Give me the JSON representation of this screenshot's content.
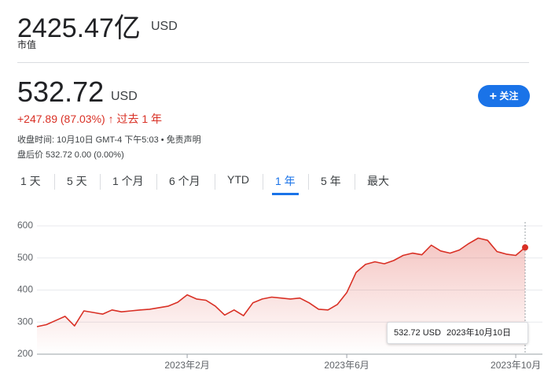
{
  "header": {
    "market_cap": "2425.47亿",
    "market_cap_currency": "USD",
    "market_cap_label": "市值"
  },
  "quote": {
    "price": "532.72",
    "currency": "USD",
    "change": "+247.89 (87.03%)",
    "period": "过去 1 年",
    "close_time": "收盘时间: 10月10日 GMT-4 下午5:03",
    "disclaimer": "免责声明",
    "after_hours": "盘后价 532.72 0.00 (0.00%)",
    "follow_button": "关注"
  },
  "tabs": [
    "1 天",
    "5 天",
    "1 个月",
    "6 个月",
    "YTD",
    "1 年",
    "5 年",
    "最大"
  ],
  "active_tab": "1 年",
  "tooltip": {
    "price": "532.72 USD",
    "date": "2023年10月10日"
  },
  "chart_data": {
    "type": "line",
    "color": "#d93025",
    "grid": true,
    "ylim": [
      200,
      600
    ],
    "yticks": [
      200,
      300,
      400,
      500,
      600
    ],
    "categories": [
      null,
      null,
      null,
      null,
      null,
      null,
      null,
      null,
      null,
      null,
      null,
      null,
      null,
      null,
      null,
      null,
      "2023年2月",
      null,
      null,
      null,
      null,
      null,
      null,
      null,
      null,
      null,
      null,
      null,
      null,
      null,
      null,
      null,
      null,
      "2023年6月",
      null,
      null,
      null,
      null,
      null,
      null,
      null,
      null,
      null,
      null,
      null,
      null,
      null,
      null,
      null,
      null,
      null,
      "2023年10月",
      null
    ],
    "values": [
      286,
      292,
      305,
      318,
      288,
      335,
      330,
      325,
      338,
      332,
      335,
      338,
      340,
      345,
      350,
      362,
      385,
      372,
      368,
      350,
      322,
      338,
      320,
      360,
      372,
      378,
      375,
      372,
      375,
      360,
      340,
      338,
      355,
      392,
      455,
      480,
      488,
      482,
      492,
      508,
      515,
      510,
      540,
      522,
      515,
      525,
      545,
      562,
      555,
      520,
      512,
      508,
      532.72
    ]
  }
}
